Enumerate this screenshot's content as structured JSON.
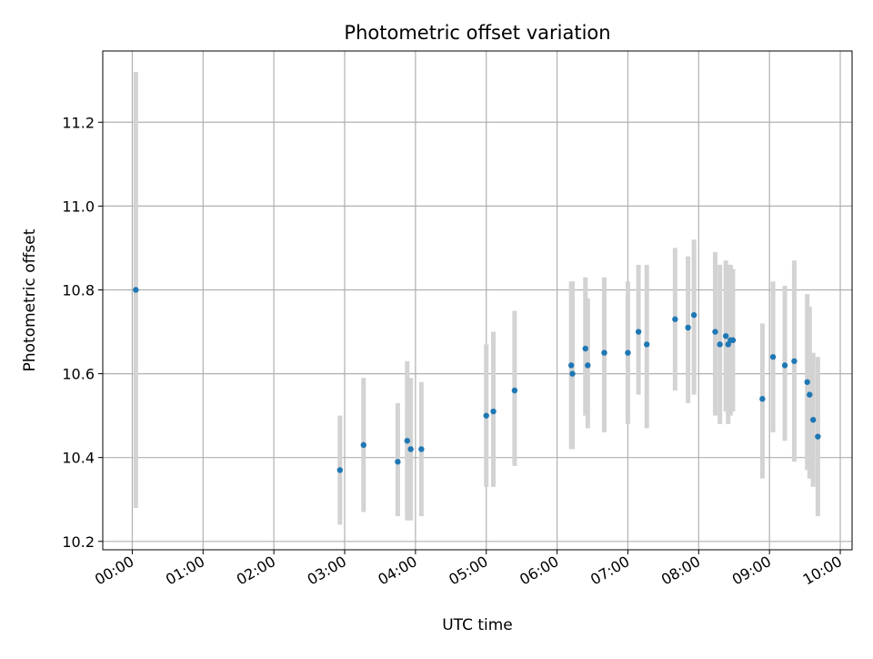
{
  "chart_data": {
    "type": "scatter",
    "title": "Photometric offset variation",
    "xlabel": "UTC time",
    "ylabel": "Photometric offset",
    "xlim": [
      "23:35",
      "10:10"
    ],
    "ylim": [
      10.18,
      11.37
    ],
    "x_ticks": [
      "00:00",
      "01:00",
      "02:00",
      "03:00",
      "04:00",
      "05:00",
      "06:00",
      "07:00",
      "08:00",
      "09:00",
      "10:00"
    ],
    "y_ticks": [
      "10.2",
      "10.4",
      "10.6",
      "10.8",
      "11.0",
      "11.2"
    ],
    "grid": true,
    "marker_color": "#1f77b4",
    "errorbar_color": "#d3d3d3",
    "points": [
      {
        "time": "00:03",
        "y": 10.8,
        "ymin": 10.28,
        "ymax": 11.32
      },
      {
        "time": "02:56",
        "y": 10.37,
        "ymin": 10.24,
        "ymax": 10.5
      },
      {
        "time": "03:16",
        "y": 10.43,
        "ymin": 10.27,
        "ymax": 10.59
      },
      {
        "time": "03:45",
        "y": 10.39,
        "ymin": 10.26,
        "ymax": 10.53
      },
      {
        "time": "03:53",
        "y": 10.44,
        "ymin": 10.25,
        "ymax": 10.63
      },
      {
        "time": "03:56",
        "y": 10.42,
        "ymin": 10.25,
        "ymax": 10.59
      },
      {
        "time": "04:05",
        "y": 10.42,
        "ymin": 10.26,
        "ymax": 10.58
      },
      {
        "time": "05:00",
        "y": 10.5,
        "ymin": 10.33,
        "ymax": 10.67
      },
      {
        "time": "05:06",
        "y": 10.51,
        "ymin": 10.33,
        "ymax": 10.7
      },
      {
        "time": "05:24",
        "y": 10.56,
        "ymin": 10.38,
        "ymax": 10.75
      },
      {
        "time": "06:12",
        "y": 10.62,
        "ymin": 10.42,
        "ymax": 10.82
      },
      {
        "time": "06:13",
        "y": 10.6,
        "ymin": 10.42,
        "ymax": 10.82
      },
      {
        "time": "06:24",
        "y": 10.66,
        "ymin": 10.5,
        "ymax": 10.83
      },
      {
        "time": "06:26",
        "y": 10.62,
        "ymin": 10.47,
        "ymax": 10.78
      },
      {
        "time": "06:40",
        "y": 10.65,
        "ymin": 10.46,
        "ymax": 10.83
      },
      {
        "time": "07:00",
        "y": 10.65,
        "ymin": 10.48,
        "ymax": 10.82
      },
      {
        "time": "07:09",
        "y": 10.7,
        "ymin": 10.55,
        "ymax": 10.86
      },
      {
        "time": "07:16",
        "y": 10.67,
        "ymin": 10.47,
        "ymax": 10.86
      },
      {
        "time": "07:40",
        "y": 10.73,
        "ymin": 10.56,
        "ymax": 10.9
      },
      {
        "time": "07:51",
        "y": 10.71,
        "ymin": 10.53,
        "ymax": 10.88
      },
      {
        "time": "07:56",
        "y": 10.74,
        "ymin": 10.55,
        "ymax": 10.92
      },
      {
        "time": "08:14",
        "y": 10.7,
        "ymin": 10.5,
        "ymax": 10.89
      },
      {
        "time": "08:18",
        "y": 10.67,
        "ymin": 10.48,
        "ymax": 10.86
      },
      {
        "time": "08:23",
        "y": 10.69,
        "ymin": 10.51,
        "ymax": 10.87
      },
      {
        "time": "08:25",
        "y": 10.67,
        "ymin": 10.48,
        "ymax": 10.86
      },
      {
        "time": "08:27",
        "y": 10.68,
        "ymin": 10.5,
        "ymax": 10.86
      },
      {
        "time": "08:29",
        "y": 10.68,
        "ymin": 10.51,
        "ymax": 10.85
      },
      {
        "time": "08:54",
        "y": 10.54,
        "ymin": 10.35,
        "ymax": 10.72
      },
      {
        "time": "09:03",
        "y": 10.64,
        "ymin": 10.46,
        "ymax": 10.82
      },
      {
        "time": "09:13",
        "y": 10.62,
        "ymin": 10.44,
        "ymax": 10.81
      },
      {
        "time": "09:21",
        "y": 10.63,
        "ymin": 10.39,
        "ymax": 10.87
      },
      {
        "time": "09:32",
        "y": 10.58,
        "ymin": 10.37,
        "ymax": 10.79
      },
      {
        "time": "09:34",
        "y": 10.55,
        "ymin": 10.35,
        "ymax": 10.76
      },
      {
        "time": "09:37",
        "y": 10.49,
        "ymin": 10.33,
        "ymax": 10.65
      },
      {
        "time": "09:41",
        "y": 10.45,
        "ymin": 10.26,
        "ymax": 10.64
      }
    ]
  }
}
